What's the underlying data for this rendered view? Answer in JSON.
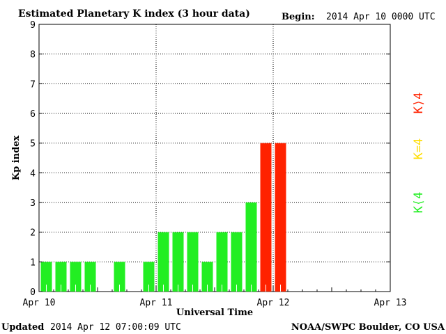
{
  "header": {
    "title": "Estimated Planetary K index (3 hour data)",
    "begin_label": "Begin:",
    "begin_value": "2014 Apr 10 0000 UTC"
  },
  "footer": {
    "updated_label": "Updated",
    "updated_value": "2014 Apr 12 07:00:09 UTC",
    "source": "NOAA/SWPC Boulder, CO USA"
  },
  "legend": {
    "high": "K⟩4",
    "equal": "K=4",
    "low": "K⟨4"
  },
  "colors": {
    "low": "#22ee22",
    "equal": "#ffdd00",
    "high": "#ff2200",
    "grid": "#000000"
  },
  "chart_data": {
    "type": "bar",
    "title": "Estimated Planetary K index (3 hour data)",
    "xlabel": "Universal Time",
    "ylabel": "Kp index",
    "ylim": [
      0,
      9
    ],
    "yticks": [
      "0",
      "1",
      "2",
      "3",
      "4",
      "5",
      "6",
      "7",
      "8",
      "9"
    ],
    "xticks": [
      "Apr 10",
      "Apr 11",
      "Apr 12",
      "Apr 13"
    ],
    "grid": true,
    "bars": [
      {
        "time": "2014-04-10 03:00",
        "value": 1
      },
      {
        "time": "2014-04-10 06:00",
        "value": 1
      },
      {
        "time": "2014-04-10 09:00",
        "value": 1
      },
      {
        "time": "2014-04-10 12:00",
        "value": 1
      },
      {
        "time": "2014-04-10 15:00",
        "value": 0
      },
      {
        "time": "2014-04-10 18:00",
        "value": 1
      },
      {
        "time": "2014-04-10 21:00",
        "value": 0
      },
      {
        "time": "2014-04-11 00:00",
        "value": 1
      },
      {
        "time": "2014-04-11 03:00",
        "value": 2
      },
      {
        "time": "2014-04-11 06:00",
        "value": 2
      },
      {
        "time": "2014-04-11 09:00",
        "value": 2
      },
      {
        "time": "2014-04-11 12:00",
        "value": 1
      },
      {
        "time": "2014-04-11 15:00",
        "value": 2
      },
      {
        "time": "2014-04-11 18:00",
        "value": 2
      },
      {
        "time": "2014-04-11 21:00",
        "value": 3
      },
      {
        "time": "2014-04-12 00:00",
        "value": 5
      },
      {
        "time": "2014-04-12 03:00",
        "value": 5
      }
    ]
  }
}
